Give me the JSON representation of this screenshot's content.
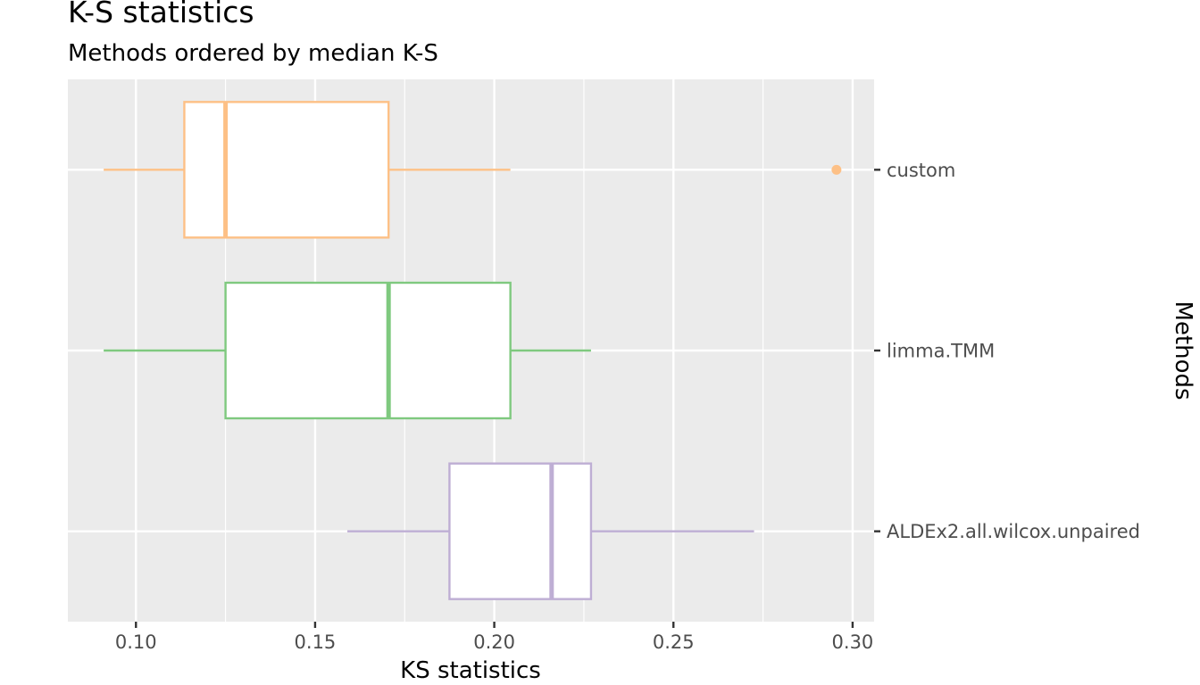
{
  "chart_data": {
    "type": "boxplot",
    "orientation": "horizontal",
    "title": "K-S statistics",
    "subtitle": "Methods ordered by median K-S",
    "xlabel": "KS statistics",
    "ylabel": "Methods",
    "ylabel_position": "right",
    "xlim": [
      0.081,
      0.306
    ],
    "x_ticks": [
      0.1,
      0.15,
      0.2,
      0.25,
      0.3
    ],
    "x_tick_labels": [
      "0.10",
      "0.15",
      "0.20",
      "0.25",
      "0.30"
    ],
    "grid": true,
    "legend": "none",
    "panel_background": "#ebebeb",
    "categories": [
      "custom",
      "limma.TMM",
      "ALDEx2.all.wilcox.unpaired"
    ],
    "boxes": [
      {
        "category": "custom",
        "color": "#fdc086",
        "whisker_low": 0.091,
        "q1": 0.1135,
        "median": 0.125,
        "q3": 0.1705,
        "whisker_high": 0.2045,
        "outliers": [
          0.2955
        ]
      },
      {
        "category": "limma.TMM",
        "color": "#7fc97f",
        "whisker_low": 0.091,
        "q1": 0.125,
        "median": 0.1705,
        "q3": 0.2045,
        "whisker_high": 0.227,
        "outliers": []
      },
      {
        "category": "ALDEx2.all.wilcox.unpaired",
        "color": "#beaed4",
        "whisker_low": 0.159,
        "q1": 0.1875,
        "median": 0.216,
        "q3": 0.227,
        "whisker_high": 0.2725,
        "outliers": []
      }
    ]
  }
}
